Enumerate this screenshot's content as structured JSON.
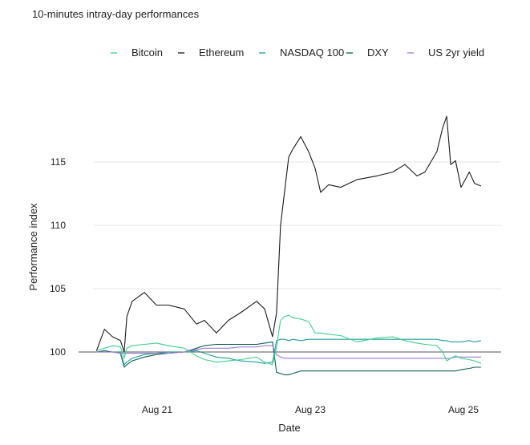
{
  "chart_data": {
    "type": "line",
    "title": "10-minutes intray-day performances",
    "xlabel": "Date",
    "ylabel": "Performance index",
    "ylim": [
      97.4,
      119.6
    ],
    "xlim": [
      "Aug 20 04:00",
      "Aug 25 07:00"
    ],
    "yticks": [
      105,
      110,
      115
    ],
    "ytick_labels": [
      "100",
      "105",
      "110",
      "115"
    ],
    "ytick_values": [
      100,
      105,
      110,
      115
    ],
    "xticks": [
      "Aug 21 00:00",
      "Aug 23 00:00",
      "Aug 25 00:00"
    ],
    "xtick_labels": [
      "Aug 21",
      "Aug 23",
      "Aug 25"
    ],
    "reference_line": 100,
    "grid": "horizontal",
    "legend_position": "top",
    "x": [
      "Aug 20 05:00",
      "Aug 20 07:30",
      "Aug 20 10:00",
      "Aug 20 12:30",
      "Aug 20 13:40",
      "Aug 20 14:30",
      "Aug 20 16:10",
      "Aug 20 20:00",
      "Aug 20 23:45",
      "Aug 21 03:30",
      "Aug 21 08:30",
      "Aug 21 12:20",
      "Aug 21 14:50",
      "Aug 21 18:35",
      "Aug 21 22:20",
      "Aug 22 02:10",
      "Aug 22 07:10",
      "Aug 22 09:40",
      "Aug 22 12:10",
      "Aug 22 13:25",
      "Aug 22 14:40",
      "Aug 22 15:55",
      "Aug 22 17:15",
      "Aug 22 18:30",
      "Aug 22 21:00",
      "Aug 22 23:30",
      "Aug 23 01:30",
      "Aug 23 03:15",
      "Aug 23 05:45",
      "Aug 23 09:30",
      "Aug 23 14:35",
      "Aug 23 20:50",
      "Aug 24 01:50",
      "Aug 24 05:40",
      "Aug 24 09:25",
      "Aug 24 11:55",
      "Aug 24 15:40",
      "Aug 24 17:30",
      "Aug 24 18:45",
      "Aug 24 20:00",
      "Aug 24 21:30",
      "Aug 24 23:15",
      "Aug 25 01:50",
      "Aug 25 03:30",
      "Aug 25 05:30"
    ],
    "series": [
      {
        "name": "Bitcoin",
        "color": "#3fcf8e",
        "values": [
          100.1,
          100.3,
          100.5,
          100.4,
          99.5,
          100.3,
          100.5,
          100.6,
          100.7,
          100.5,
          100.3,
          99.7,
          99.4,
          99.2,
          99.3,
          99.4,
          99.6,
          99.2,
          99.0,
          100.4,
          102.5,
          102.8,
          102.9,
          102.7,
          102.6,
          102.4,
          101.5,
          101.5,
          101.4,
          101.3,
          100.8,
          101.1,
          101.2,
          100.9,
          100.7,
          100.6,
          100.5,
          100.0,
          99.3,
          99.5,
          99.7,
          99.5,
          99.4,
          99.3,
          99.1
        ]
      },
      {
        "name": "Ethereum",
        "color": "#1a1a1a",
        "values": [
          100.1,
          101.8,
          101.2,
          100.9,
          100.0,
          102.8,
          104.0,
          104.7,
          103.7,
          103.7,
          103.4,
          102.2,
          102.5,
          101.5,
          102.5,
          103.1,
          104.0,
          103.4,
          101.2,
          103.1,
          110.0,
          112.6,
          115.4,
          116.0,
          117.0,
          115.8,
          114.5,
          112.6,
          113.2,
          113.0,
          113.6,
          113.9,
          114.2,
          114.8,
          113.9,
          114.2,
          115.8,
          117.7,
          118.6,
          114.8,
          115.1,
          113.0,
          114.2,
          113.3,
          113.1
        ]
      },
      {
        "name": "NASDAQ 100",
        "color": "#1f9e9a",
        "values": [
          100.0,
          100.0,
          100.0,
          100.0,
          99.0,
          99.2,
          99.5,
          99.8,
          99.9,
          100.0,
          100.0,
          100.1,
          99.9,
          99.6,
          99.5,
          99.3,
          99.2,
          99.1,
          99.2,
          100.9,
          101.0,
          101.0,
          100.9,
          101.0,
          100.9,
          101.0,
          101.0,
          101.0,
          101.0,
          101.0,
          101.0,
          101.0,
          101.0,
          101.0,
          101.0,
          101.0,
          101.0,
          100.9,
          100.9,
          100.8,
          100.8,
          100.8,
          100.9,
          100.8,
          100.9
        ]
      },
      {
        "name": "DXY",
        "color": "#0c5e52",
        "values": [
          100.0,
          100.1,
          100.0,
          99.9,
          98.8,
          99.0,
          99.3,
          99.6,
          99.8,
          99.9,
          100.0,
          100.3,
          100.5,
          100.6,
          100.6,
          100.6,
          100.6,
          100.7,
          100.8,
          98.4,
          98.3,
          98.2,
          98.2,
          98.3,
          98.5,
          98.5,
          98.5,
          98.5,
          98.5,
          98.5,
          98.5,
          98.5,
          98.5,
          98.5,
          98.5,
          98.5,
          98.5,
          98.5,
          98.5,
          98.5,
          98.5,
          98.6,
          98.7,
          98.8,
          98.8
        ]
      },
      {
        "name": "US 2yr yield",
        "color": "#a07ad6",
        "values": [
          100.0,
          100.0,
          100.0,
          99.9,
          99.9,
          99.9,
          99.9,
          99.9,
          99.9,
          99.9,
          100.0,
          100.2,
          100.3,
          100.3,
          100.3,
          100.4,
          100.4,
          100.5,
          100.5,
          99.8,
          99.6,
          99.5,
          99.5,
          99.5,
          99.5,
          99.5,
          99.5,
          99.5,
          99.5,
          99.5,
          99.5,
          99.5,
          99.5,
          99.5,
          99.5,
          99.5,
          99.5,
          99.5,
          99.5,
          99.5,
          99.6,
          99.6,
          99.6,
          99.6,
          99.6
        ]
      }
    ]
  }
}
